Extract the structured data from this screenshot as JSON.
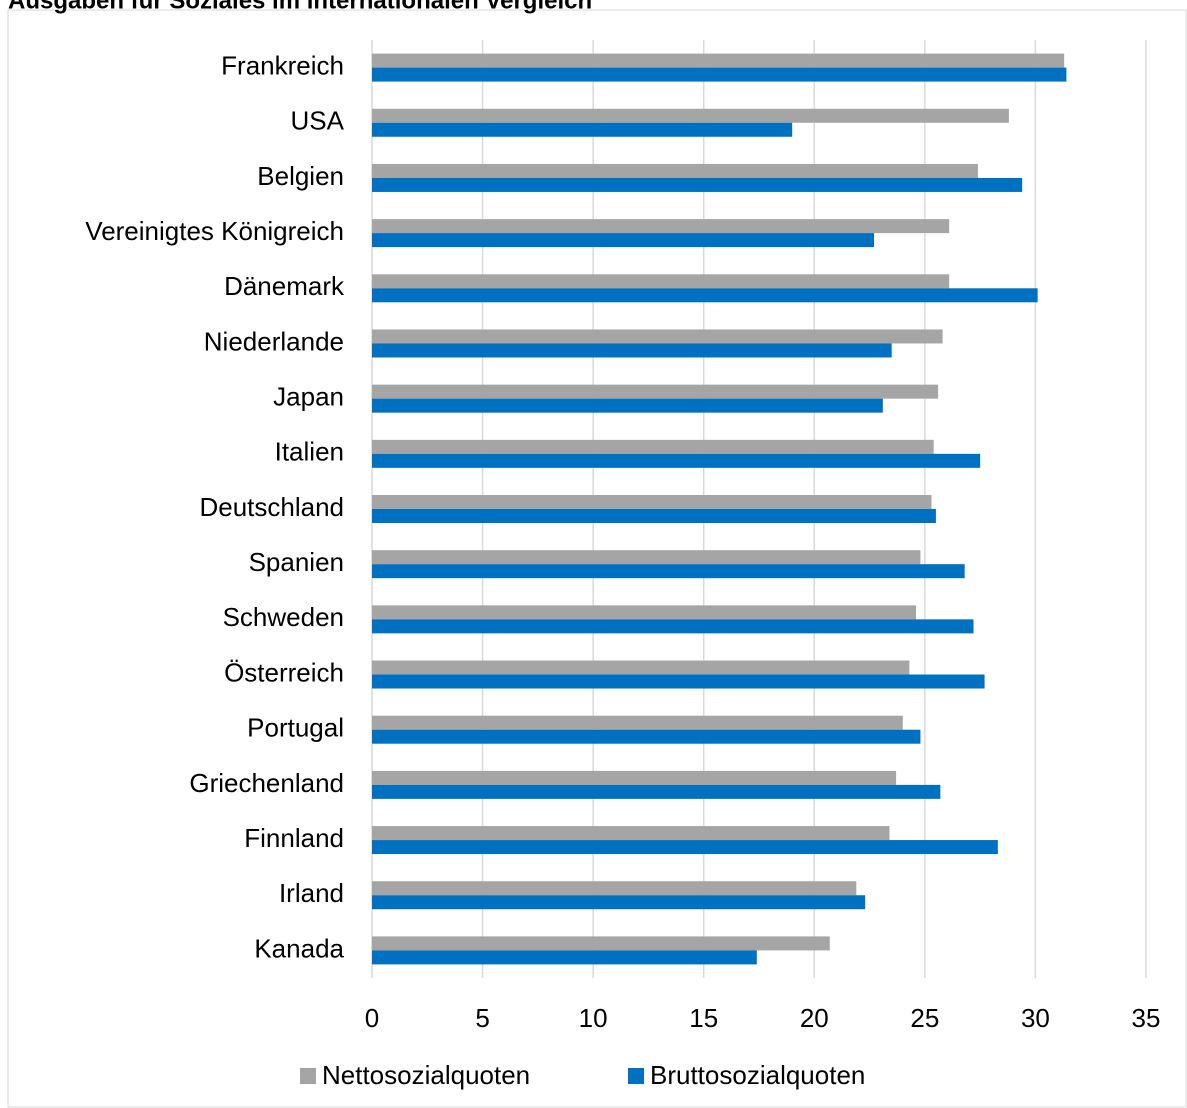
{
  "chart_data": {
    "type": "hbar",
    "title": "Ausgaben für Soziales im internationalen Vergleich",
    "categories": [
      "Frankreich",
      "USA",
      "Belgien",
      "Vereinigtes Königreich",
      "Dänemark",
      "Niederlande",
      "Japan",
      "Italien",
      "Deutschland",
      "Spanien",
      "Schweden",
      "Österreich",
      "Portugal",
      "Griechenland",
      "Finnland",
      "Irland",
      "Kanada"
    ],
    "series": [
      {
        "name": "Nettosozialquoten",
        "color": "#a5a5a5",
        "values": [
          31.3,
          28.8,
          27.4,
          26.1,
          26.1,
          25.8,
          25.6,
          25.4,
          25.3,
          24.8,
          24.6,
          24.3,
          24.0,
          23.7,
          23.4,
          21.9,
          20.7
        ]
      },
      {
        "name": "Bruttosozialquoten",
        "color": "#0070c0",
        "values": [
          31.4,
          19.0,
          29.4,
          22.7,
          30.1,
          23.5,
          23.1,
          27.5,
          25.5,
          26.8,
          27.2,
          27.7,
          24.8,
          25.7,
          28.3,
          22.3,
          17.4
        ]
      }
    ],
    "xlim": [
      0,
      35
    ],
    "xticks": [
      0,
      5,
      10,
      15,
      20,
      25,
      30,
      35
    ],
    "grid": true,
    "legend": "bottom"
  }
}
